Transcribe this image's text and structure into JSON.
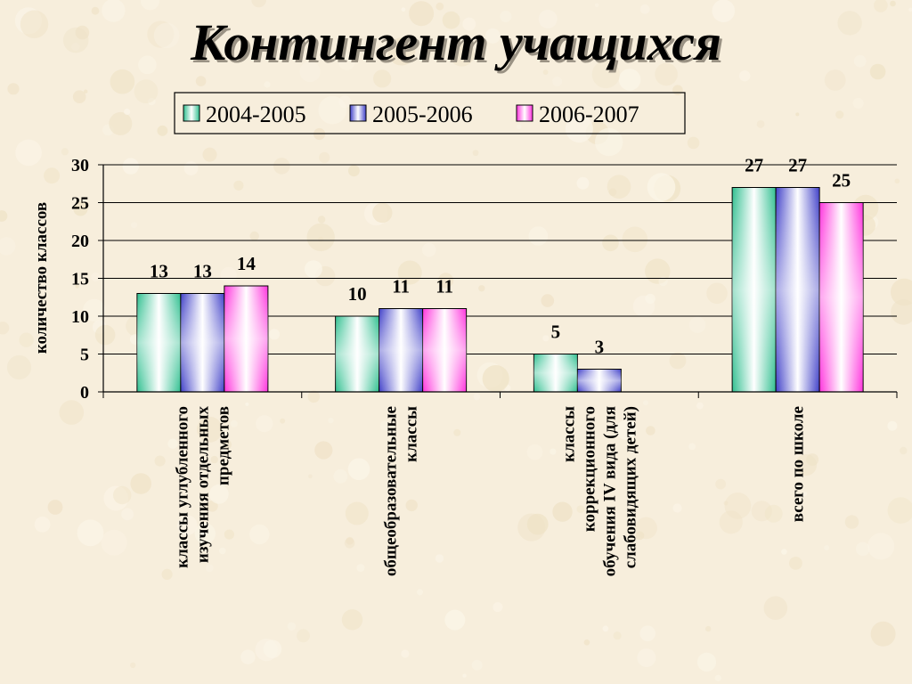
{
  "slide": {
    "title": "Контингент учащихся"
  },
  "colors": {
    "background": "#f7eedc",
    "series": [
      "#2fbf8f",
      "#4040c8",
      "#ff33dd"
    ]
  },
  "chart_data": {
    "type": "bar",
    "title": "",
    "ylabel": "количество классов",
    "ylim": [
      0,
      30
    ],
    "yticks": [
      0,
      5,
      10,
      15,
      20,
      25,
      30
    ],
    "grid": true,
    "legend_position": "top",
    "categories": [
      [
        "классы углубленного",
        "изучения отдельных",
        "предметов"
      ],
      [
        "общеобразовательные",
        "классы"
      ],
      [
        "классы",
        "коррекционного",
        "обучения IV вида (для",
        "слабовидящих детей)"
      ],
      [
        "всего по школе"
      ]
    ],
    "series": [
      {
        "name": "2004-2005",
        "values": [
          13,
          10,
          5,
          27
        ]
      },
      {
        "name": "2005-2006",
        "values": [
          13,
          11,
          3,
          27
        ]
      },
      {
        "name": "2006-2007",
        "values": [
          14,
          11,
          null,
          25
        ]
      }
    ]
  }
}
